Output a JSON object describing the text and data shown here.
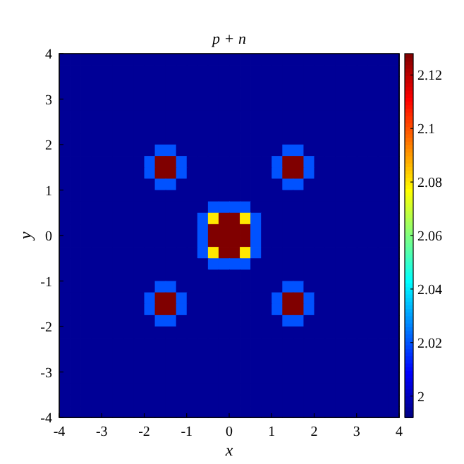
{
  "chart_data": {
    "type": "heatmap",
    "title": "p + n",
    "xlabel": "x",
    "ylabel": "y",
    "xlim": [
      -4,
      4
    ],
    "ylim": [
      -4,
      4
    ],
    "xticks": [
      -4,
      -3,
      -2,
      -1,
      0,
      1,
      2,
      3,
      4
    ],
    "yticks": [
      -4,
      -3,
      -2,
      -1,
      0,
      1,
      2,
      3,
      4
    ],
    "clim": [
      1.992,
      2.128
    ],
    "cticks": [
      2,
      2.02,
      2.04,
      2.06,
      2.08,
      2.1,
      2.12
    ],
    "grid": false,
    "cells": [
      [
        1.995,
        1.995,
        1.995,
        1.995,
        1.995,
        1.995,
        1.995,
        1.995,
        1.995,
        1.995,
        1.995,
        1.995,
        1.995,
        1.995,
        1.995,
        1.995,
        1.995,
        1.995,
        1.995,
        1.995,
        1.995,
        1.995,
        1.995,
        1.995,
        1.995,
        1.995,
        1.995,
        1.995,
        1.995,
        1.995,
        1.995,
        1.995
      ],
      [
        1.995,
        1.995,
        1.995,
        1.995,
        1.995,
        1.995,
        1.995,
        1.995,
        1.995,
        1.995,
        1.995,
        1.995,
        1.995,
        1.995,
        1.995,
        1.995,
        1.995,
        1.995,
        1.995,
        1.995,
        1.995,
        1.995,
        1.995,
        1.995,
        1.995,
        1.995,
        1.995,
        1.995,
        1.995,
        1.995,
        1.995,
        1.995
      ],
      [
        1.995,
        1.995,
        1.995,
        1.995,
        1.995,
        1.995,
        1.995,
        1.995,
        1.995,
        1.995,
        1.995,
        1.995,
        1.995,
        1.995,
        1.995,
        1.995,
        1.995,
        1.995,
        1.995,
        1.995,
        1.995,
        1.995,
        1.995,
        1.995,
        1.995,
        1.995,
        1.995,
        1.995,
        1.995,
        1.995,
        1.995,
        1.995
      ],
      [
        1.995,
        1.995,
        1.995,
        1.995,
        1.995,
        1.995,
        1.995,
        1.995,
        1.995,
        1.995,
        1.995,
        1.995,
        1.995,
        1.995,
        1.995,
        1.995,
        1.995,
        1.995,
        1.995,
        1.995,
        1.995,
        1.995,
        1.995,
        1.995,
        1.995,
        1.995,
        1.995,
        1.995,
        1.995,
        1.995,
        1.995,
        1.995
      ],
      [
        1.995,
        1.995,
        1.995,
        1.995,
        1.995,
        1.995,
        1.995,
        1.995,
        1.995,
        1.995,
        1.995,
        1.995,
        1.995,
        1.995,
        1.995,
        1.995,
        1.995,
        1.995,
        1.995,
        1.995,
        1.995,
        1.995,
        1.995,
        1.995,
        1.995,
        1.995,
        1.995,
        1.995,
        1.995,
        1.995,
        1.995,
        1.995
      ],
      [
        1.995,
        1.995,
        1.995,
        1.995,
        1.995,
        1.995,
        1.995,
        1.995,
        1.995,
        1.995,
        1.995,
        1.995,
        1.995,
        1.995,
        1.995,
        1.995,
        1.995,
        1.995,
        1.995,
        1.995,
        1.995,
        1.995,
        1.995,
        1.995,
        1.995,
        1.995,
        1.995,
        1.995,
        1.995,
        1.995,
        1.995,
        1.995
      ],
      [
        1.995,
        1.995,
        1.995,
        1.995,
        1.995,
        1.995,
        1.995,
        1.995,
        1.995,
        1.995,
        1.995,
        1.995,
        1.995,
        1.995,
        1.995,
        1.995,
        1.995,
        1.995,
        1.995,
        1.995,
        1.995,
        1.995,
        1.995,
        1.995,
        1.995,
        1.995,
        1.995,
        1.995,
        1.995,
        1.995,
        1.995,
        1.995
      ],
      [
        1.995,
        1.995,
        1.995,
        1.995,
        1.995,
        1.995,
        1.995,
        1.995,
        1.995,
        1.995,
        1.995,
        1.995,
        1.995,
        1.995,
        1.995,
        1.995,
        1.995,
        1.995,
        1.995,
        1.995,
        1.995,
        1.995,
        1.995,
        1.995,
        1.995,
        1.995,
        1.995,
        1.995,
        1.995,
        1.995,
        1.995,
        1.995
      ],
      [
        1.995,
        1.995,
        1.995,
        1.995,
        1.995,
        1.995,
        1.995,
        1.995,
        1.995,
        2.02,
        2.02,
        1.995,
        1.995,
        1.995,
        1.995,
        1.995,
        1.995,
        1.995,
        1.995,
        1.995,
        1.995,
        2.02,
        2.02,
        1.995,
        1.995,
        1.995,
        1.995,
        1.995,
        1.995,
        1.995,
        1.995,
        1.995
      ],
      [
        1.995,
        1.995,
        1.995,
        1.995,
        1.995,
        1.995,
        1.995,
        1.995,
        2.02,
        2.128,
        2.128,
        2.02,
        1.995,
        1.995,
        1.995,
        1.995,
        1.995,
        1.995,
        1.995,
        1.995,
        2.02,
        2.128,
        2.128,
        2.02,
        1.995,
        1.995,
        1.995,
        1.995,
        1.995,
        1.995,
        1.995,
        1.995
      ],
      [
        1.995,
        1.995,
        1.995,
        1.995,
        1.995,
        1.995,
        1.995,
        1.995,
        2.02,
        2.128,
        2.128,
        2.02,
        1.995,
        1.995,
        1.995,
        1.995,
        1.995,
        1.995,
        1.995,
        1.995,
        2.02,
        2.128,
        2.128,
        2.02,
        1.995,
        1.995,
        1.995,
        1.995,
        1.995,
        1.995,
        1.995,
        1.995
      ],
      [
        1.995,
        1.995,
        1.995,
        1.995,
        1.995,
        1.995,
        1.995,
        1.995,
        1.995,
        2.02,
        2.02,
        1.995,
        1.995,
        1.995,
        1.995,
        1.995,
        1.995,
        1.995,
        1.995,
        1.995,
        1.995,
        2.02,
        2.02,
        1.995,
        1.995,
        1.995,
        1.995,
        1.995,
        1.995,
        1.995,
        1.995,
        1.995
      ],
      [
        1.995,
        1.995,
        1.995,
        1.995,
        1.995,
        1.995,
        1.995,
        1.995,
        1.995,
        1.995,
        1.995,
        1.995,
        1.995,
        1.995,
        1.995,
        1.995,
        1.995,
        1.995,
        1.995,
        1.995,
        1.995,
        1.995,
        1.995,
        1.995,
        1.995,
        1.995,
        1.995,
        1.995,
        1.995,
        1.995,
        1.995,
        1.995
      ],
      [
        1.995,
        1.995,
        1.995,
        1.995,
        1.995,
        1.995,
        1.995,
        1.995,
        1.995,
        1.995,
        1.995,
        1.995,
        1.995,
        1.995,
        2.02,
        2.02,
        2.02,
        2.02,
        1.995,
        1.995,
        1.995,
        1.995,
        1.995,
        1.995,
        1.995,
        1.995,
        1.995,
        1.995,
        1.995,
        1.995,
        1.995,
        1.995
      ],
      [
        1.995,
        1.995,
        1.995,
        1.995,
        1.995,
        1.995,
        1.995,
        1.995,
        1.995,
        1.995,
        1.995,
        1.995,
        1.995,
        2.02,
        2.08,
        2.128,
        2.128,
        2.08,
        2.02,
        1.995,
        1.995,
        1.995,
        1.995,
        1.995,
        1.995,
        1.995,
        1.995,
        1.995,
        1.995,
        1.995,
        1.995,
        1.995
      ],
      [
        1.995,
        1.995,
        1.995,
        1.995,
        1.995,
        1.995,
        1.995,
        1.995,
        1.995,
        1.995,
        1.995,
        1.995,
        1.995,
        2.02,
        2.128,
        2.128,
        2.128,
        2.128,
        2.02,
        1.995,
        1.995,
        1.995,
        1.995,
        1.995,
        1.995,
        1.995,
        1.995,
        1.995,
        1.995,
        1.995,
        1.995,
        1.995
      ],
      [
        1.995,
        1.995,
        1.995,
        1.995,
        1.995,
        1.995,
        1.995,
        1.995,
        1.995,
        1.995,
        1.995,
        1.995,
        1.995,
        2.02,
        2.128,
        2.128,
        2.128,
        2.128,
        2.02,
        1.995,
        1.995,
        1.995,
        1.995,
        1.995,
        1.995,
        1.995,
        1.995,
        1.995,
        1.995,
        1.995,
        1.995,
        1.995
      ],
      [
        1.995,
        1.995,
        1.995,
        1.995,
        1.995,
        1.995,
        1.995,
        1.995,
        1.995,
        1.995,
        1.995,
        1.995,
        1.995,
        2.02,
        2.08,
        2.128,
        2.128,
        2.08,
        2.02,
        1.995,
        1.995,
        1.995,
        1.995,
        1.995,
        1.995,
        1.995,
        1.995,
        1.995,
        1.995,
        1.995,
        1.995,
        1.995
      ],
      [
        1.995,
        1.995,
        1.995,
        1.995,
        1.995,
        1.995,
        1.995,
        1.995,
        1.995,
        1.995,
        1.995,
        1.995,
        1.995,
        1.995,
        2.02,
        2.02,
        2.02,
        2.02,
        1.995,
        1.995,
        1.995,
        1.995,
        1.995,
        1.995,
        1.995,
        1.995,
        1.995,
        1.995,
        1.995,
        1.995,
        1.995,
        1.995
      ],
      [
        1.995,
        1.995,
        1.995,
        1.995,
        1.995,
        1.995,
        1.995,
        1.995,
        1.995,
        1.995,
        1.995,
        1.995,
        1.995,
        1.995,
        1.995,
        1.995,
        1.995,
        1.995,
        1.995,
        1.995,
        1.995,
        1.995,
        1.995,
        1.995,
        1.995,
        1.995,
        1.995,
        1.995,
        1.995,
        1.995,
        1.995,
        1.995
      ],
      [
        1.995,
        1.995,
        1.995,
        1.995,
        1.995,
        1.995,
        1.995,
        1.995,
        1.995,
        2.02,
        2.02,
        1.995,
        1.995,
        1.995,
        1.995,
        1.995,
        1.995,
        1.995,
        1.995,
        1.995,
        1.995,
        2.02,
        2.02,
        1.995,
        1.995,
        1.995,
        1.995,
        1.995,
        1.995,
        1.995,
        1.995,
        1.995
      ],
      [
        1.995,
        1.995,
        1.995,
        1.995,
        1.995,
        1.995,
        1.995,
        1.995,
        2.02,
        2.128,
        2.128,
        2.02,
        1.995,
        1.995,
        1.995,
        1.995,
        1.995,
        1.995,
        1.995,
        1.995,
        2.02,
        2.128,
        2.128,
        2.02,
        1.995,
        1.995,
        1.995,
        1.995,
        1.995,
        1.995,
        1.995,
        1.995
      ],
      [
        1.995,
        1.995,
        1.995,
        1.995,
        1.995,
        1.995,
        1.995,
        1.995,
        2.02,
        2.128,
        2.128,
        2.02,
        1.995,
        1.995,
        1.995,
        1.995,
        1.995,
        1.995,
        1.995,
        1.995,
        2.02,
        2.128,
        2.128,
        2.02,
        1.995,
        1.995,
        1.995,
        1.995,
        1.995,
        1.995,
        1.995,
        1.995
      ],
      [
        1.995,
        1.995,
        1.995,
        1.995,
        1.995,
        1.995,
        1.995,
        1.995,
        1.995,
        2.02,
        2.02,
        1.995,
        1.995,
        1.995,
        1.995,
        1.995,
        1.995,
        1.995,
        1.995,
        1.995,
        1.995,
        2.02,
        2.02,
        1.995,
        1.995,
        1.995,
        1.995,
        1.995,
        1.995,
        1.995,
        1.995,
        1.995
      ],
      [
        1.995,
        1.995,
        1.995,
        1.995,
        1.995,
        1.995,
        1.995,
        1.995,
        1.995,
        1.995,
        1.995,
        1.995,
        1.995,
        1.995,
        1.995,
        1.995,
        1.995,
        1.995,
        1.995,
        1.995,
        1.995,
        1.995,
        1.995,
        1.995,
        1.995,
        1.995,
        1.995,
        1.995,
        1.995,
        1.995,
        1.995,
        1.995
      ],
      [
        1.995,
        1.995,
        1.995,
        1.995,
        1.995,
        1.995,
        1.995,
        1.995,
        1.995,
        1.995,
        1.995,
        1.995,
        1.995,
        1.995,
        1.995,
        1.995,
        1.995,
        1.995,
        1.995,
        1.995,
        1.995,
        1.995,
        1.995,
        1.995,
        1.995,
        1.995,
        1.995,
        1.995,
        1.995,
        1.995,
        1.995,
        1.995
      ],
      [
        1.995,
        1.995,
        1.995,
        1.995,
        1.995,
        1.995,
        1.995,
        1.995,
        1.995,
        1.995,
        1.995,
        1.995,
        1.995,
        1.995,
        1.995,
        1.995,
        1.995,
        1.995,
        1.995,
        1.995,
        1.995,
        1.995,
        1.995,
        1.995,
        1.995,
        1.995,
        1.995,
        1.995,
        1.995,
        1.995,
        1.995,
        1.995
      ],
      [
        1.995,
        1.995,
        1.995,
        1.995,
        1.995,
        1.995,
        1.995,
        1.995,
        1.995,
        1.995,
        1.995,
        1.995,
        1.995,
        1.995,
        1.995,
        1.995,
        1.995,
        1.995,
        1.995,
        1.995,
        1.995,
        1.995,
        1.995,
        1.995,
        1.995,
        1.995,
        1.995,
        1.995,
        1.995,
        1.995,
        1.995,
        1.995
      ],
      [
        1.995,
        1.995,
        1.995,
        1.995,
        1.995,
        1.995,
        1.995,
        1.995,
        1.995,
        1.995,
        1.995,
        1.995,
        1.995,
        1.995,
        1.995,
        1.995,
        1.995,
        1.995,
        1.995,
        1.995,
        1.995,
        1.995,
        1.995,
        1.995,
        1.995,
        1.995,
        1.995,
        1.995,
        1.995,
        1.995,
        1.995,
        1.995
      ],
      [
        1.995,
        1.995,
        1.995,
        1.995,
        1.995,
        1.995,
        1.995,
        1.995,
        1.995,
        1.995,
        1.995,
        1.995,
        1.995,
        1.995,
        1.995,
        1.995,
        1.995,
        1.995,
        1.995,
        1.995,
        1.995,
        1.995,
        1.995,
        1.995,
        1.995,
        1.995,
        1.995,
        1.995,
        1.995,
        1.995,
        1.995,
        1.995
      ],
      [
        1.995,
        1.995,
        1.995,
        1.995,
        1.995,
        1.995,
        1.995,
        1.995,
        1.995,
        1.995,
        1.995,
        1.995,
        1.995,
        1.995,
        1.995,
        1.995,
        1.995,
        1.995,
        1.995,
        1.995,
        1.995,
        1.995,
        1.995,
        1.995,
        1.995,
        1.995,
        1.995,
        1.995,
        1.995,
        1.995,
        1.995,
        1.995
      ],
      [
        1.995,
        1.995,
        1.995,
        1.995,
        1.995,
        1.995,
        1.995,
        1.995,
        1.995,
        1.995,
        1.995,
        1.995,
        1.995,
        1.995,
        1.995,
        1.995,
        1.995,
        1.995,
        1.995,
        1.995,
        1.995,
        1.995,
        1.995,
        1.995,
        1.995,
        1.995,
        1.995,
        1.995,
        1.995,
        1.995,
        1.995,
        1.995
      ]
    ]
  }
}
